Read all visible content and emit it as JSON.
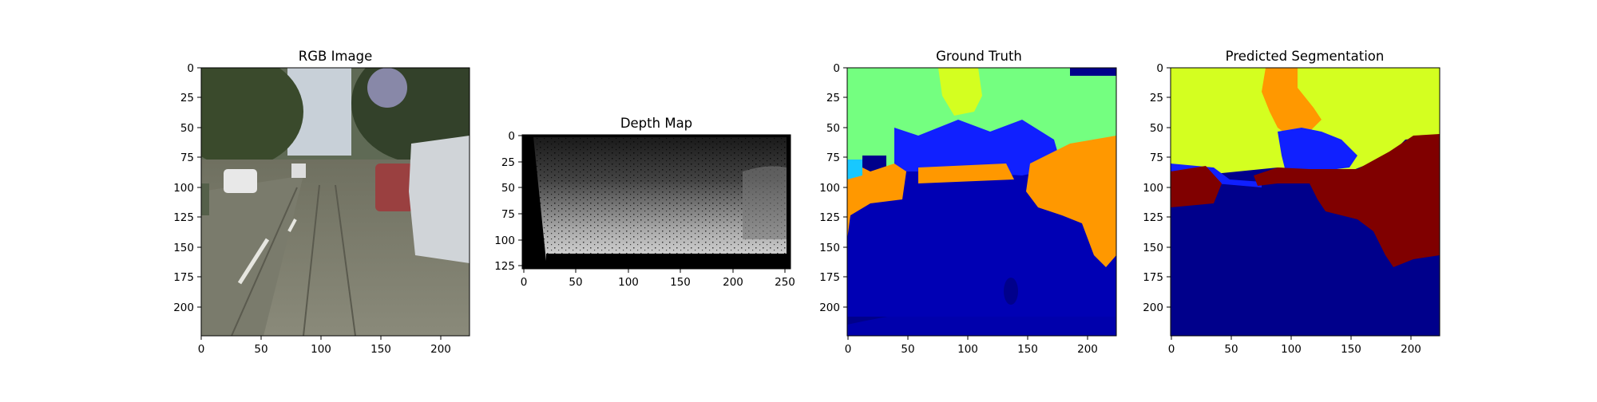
{
  "panels": [
    {
      "title": "RGB Image",
      "xticks": [
        "0",
        "50",
        "100",
        "150",
        "200"
      ],
      "yticks": [
        "0",
        "25",
        "50",
        "75",
        "100",
        "125",
        "150",
        "175",
        "200"
      ]
    },
    {
      "title": "Depth Map",
      "xticks": [
        "0",
        "50",
        "100",
        "150",
        "200",
        "250"
      ],
      "yticks": [
        "0",
        "25",
        "50",
        "75",
        "100",
        "125"
      ]
    },
    {
      "title": "Ground Truth",
      "xticks": [
        "0",
        "50",
        "100",
        "150",
        "200"
      ],
      "yticks": [
        "0",
        "25",
        "50",
        "75",
        "100",
        "125",
        "150",
        "175",
        "200"
      ]
    },
    {
      "title": "Predicted Segmentation",
      "xticks": [
        "0",
        "50",
        "100",
        "150",
        "200"
      ],
      "yticks": [
        "0",
        "25",
        "50",
        "75",
        "100",
        "125",
        "150",
        "175",
        "200"
      ]
    }
  ],
  "colors": {
    "seg_navy": "#00008b",
    "seg_blue_dark": "#0000b4",
    "seg_blue": "#1020ff",
    "seg_green": "#74ff80",
    "seg_yellow": "#d4ff20",
    "seg_orange": "#ff9800",
    "seg_maroon": "#800000",
    "seg_cyan": "#18c8ff"
  }
}
